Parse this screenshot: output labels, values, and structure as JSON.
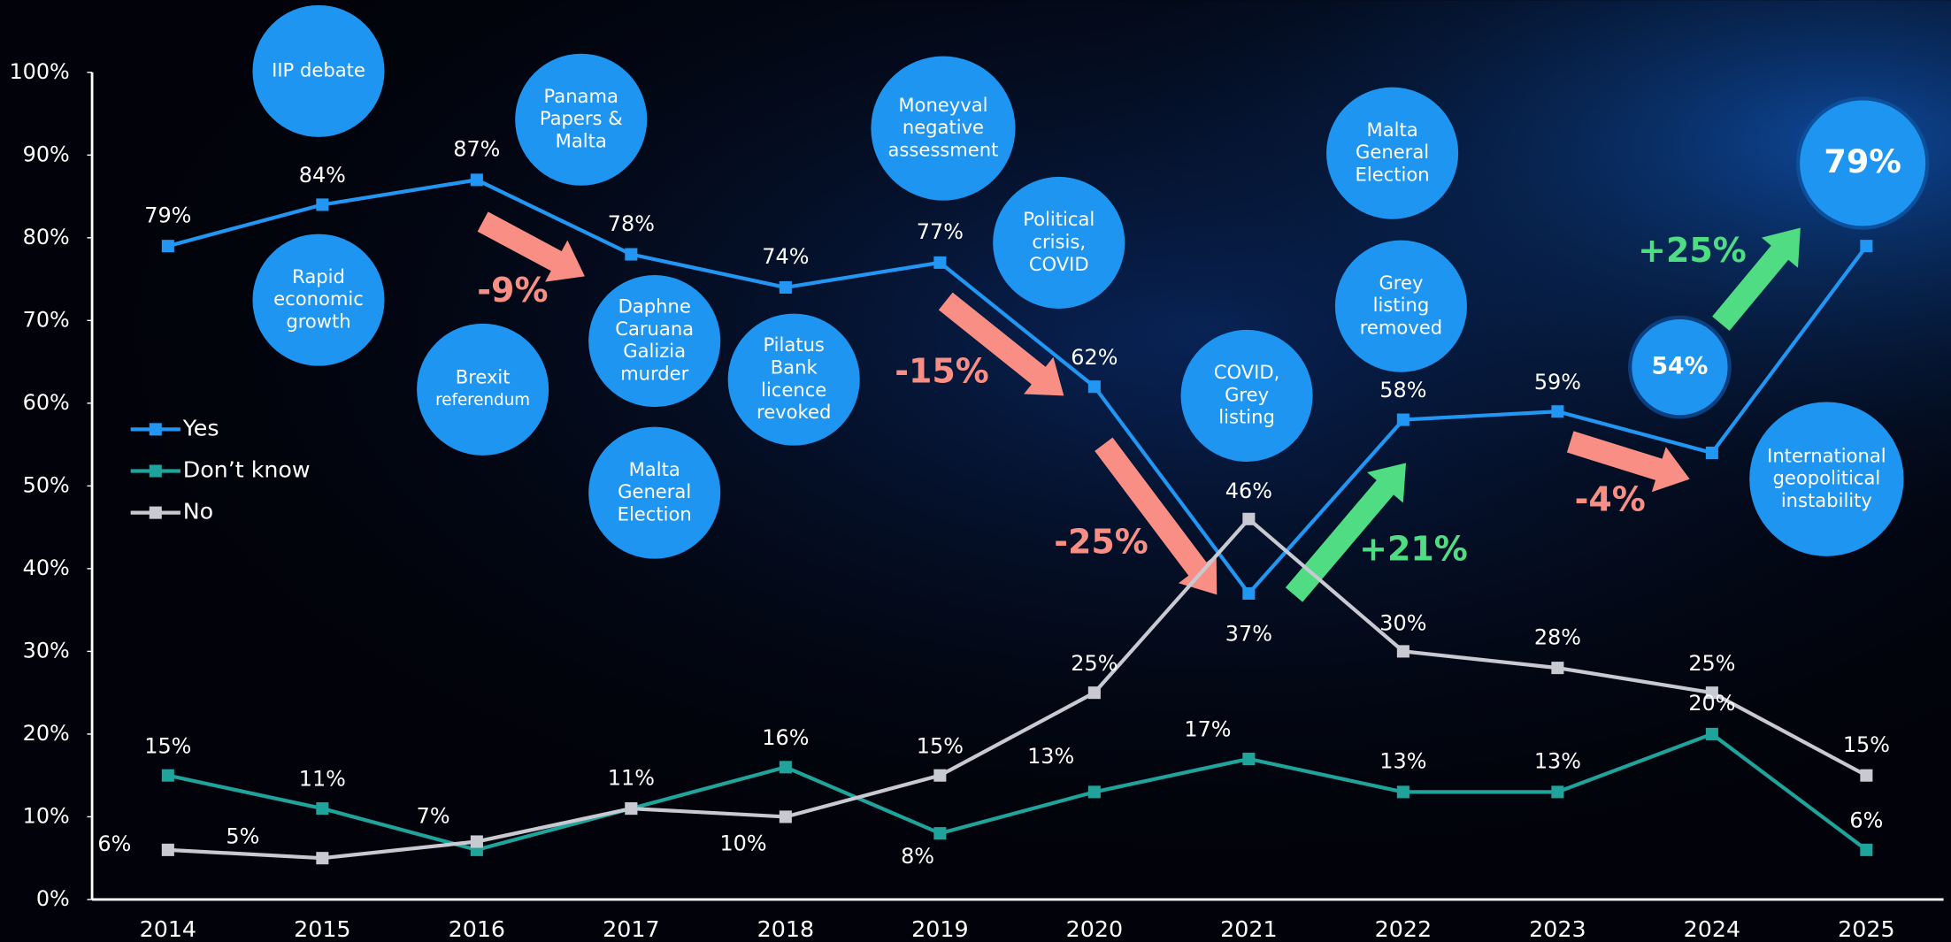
{
  "chart_data": {
    "type": "line",
    "categories": [
      "2014",
      "2015",
      "2016",
      "2017",
      "2018",
      "2019",
      "2020",
      "2021",
      "2022",
      "2023",
      "2024",
      "2025"
    ],
    "series": [
      {
        "name": "Yes",
        "color": "#2196f3",
        "values": [
          79,
          84,
          87,
          78,
          74,
          77,
          62,
          37,
          58,
          59,
          54,
          79
        ],
        "value_labels": [
          "79%",
          "84%",
          "87%",
          "78%",
          "74%",
          "77%",
          "62%",
          "37%",
          "58%",
          "59%",
          "54%",
          "79%"
        ]
      },
      {
        "name": "Don’t know",
        "color": "#1fa39b",
        "values": [
          15,
          11,
          6,
          11,
          16,
          8,
          13,
          17,
          13,
          13,
          20,
          6
        ],
        "value_labels": [
          "15%",
          "11%",
          null,
          null,
          "16%",
          "8%",
          "13%",
          "17%",
          "13%",
          "13%",
          "20%",
          "6%"
        ]
      },
      {
        "name": "No",
        "color": "#c9c9d2",
        "values": [
          6,
          5,
          7,
          11,
          10,
          15,
          25,
          46,
          30,
          28,
          25,
          15
        ],
        "value_labels": [
          "6%",
          "5%",
          "7%",
          "11%",
          "10%",
          "15%",
          "25%",
          "46%",
          "30%",
          "28%",
          "25%",
          "15%"
        ]
      }
    ],
    "ylim": [
      0,
      100
    ],
    "yticks": [
      {
        "value": 0,
        "label": "0%"
      },
      {
        "value": 10,
        "label": "10%"
      },
      {
        "value": 20,
        "label": "20%"
      },
      {
        "value": 30,
        "label": "30%"
      },
      {
        "value": 40,
        "label": "40%"
      },
      {
        "value": 50,
        "label": "50%"
      },
      {
        "value": 60,
        "label": "60%"
      },
      {
        "value": 70,
        "label": "70%"
      },
      {
        "value": 80,
        "label": "80%"
      },
      {
        "value": 90,
        "label": "90%"
      },
      {
        "value": 100,
        "label": "100%"
      }
    ],
    "legend": "left",
    "events": [
      {
        "lines": [
          "IIP debate"
        ]
      },
      {
        "lines": [
          "Rapid",
          "economic",
          "growth"
        ]
      },
      {
        "lines": [
          "Brexit",
          "referendum"
        ]
      },
      {
        "lines": [
          "Panama",
          "Papers &",
          "Malta"
        ]
      },
      {
        "lines": [
          "Daphne",
          "Caruana",
          "Galizia",
          "murder"
        ]
      },
      {
        "lines": [
          "Malta",
          "General",
          "Election"
        ]
      },
      {
        "lines": [
          "Pilatus",
          "Bank",
          "licence",
          "revoked"
        ]
      },
      {
        "lines": [
          "Moneyval",
          "negative",
          "assessment"
        ]
      },
      {
        "lines": [
          "Political",
          "crisis,",
          "COVID"
        ]
      },
      {
        "lines": [
          "COVID,",
          "Grey",
          "listing"
        ]
      },
      {
        "lines": [
          "Malta",
          "General",
          "Election"
        ]
      },
      {
        "lines": [
          "Grey",
          "listing",
          "removed"
        ]
      },
      {
        "lines": [
          "International",
          "geopolitical",
          "instability"
        ]
      }
    ],
    "changes": [
      {
        "text": "-9%",
        "color": "#f98f84"
      },
      {
        "text": "-15%",
        "color": "#f98f84"
      },
      {
        "text": "-25%",
        "color": "#f98f84"
      },
      {
        "text": "+21%",
        "color": "#4fdc83"
      },
      {
        "text": "+25%",
        "color": "#4fdc83"
      },
      {
        "text": "-4%",
        "color": "#f98f84"
      }
    ]
  }
}
